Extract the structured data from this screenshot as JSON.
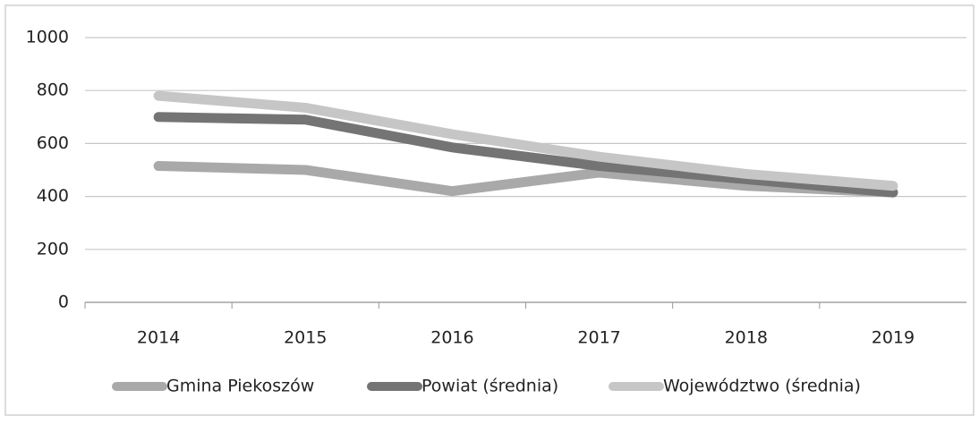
{
  "chart_data": {
    "type": "line",
    "categories": [
      "2014",
      "2015",
      "2016",
      "2017",
      "2018",
      "2019"
    ],
    "series": [
      {
        "name": "Gmina Piekoszów",
        "color": "#a9a9a9",
        "values": [
          515,
          500,
          420,
          490,
          440,
          415
        ]
      },
      {
        "name": "Powiat (średnia)",
        "color": "#747474",
        "values": [
          700,
          690,
          585,
          515,
          465,
          415
        ]
      },
      {
        "name": "Województwo (średnia)",
        "color": "#c6c6c6",
        "values": [
          780,
          735,
          635,
          550,
          485,
          440
        ]
      }
    ],
    "ylim": [
      0,
      1000
    ],
    "yticks": [
      0,
      200,
      400,
      600,
      800,
      1000
    ],
    "grid": true,
    "legend": "bottom"
  }
}
